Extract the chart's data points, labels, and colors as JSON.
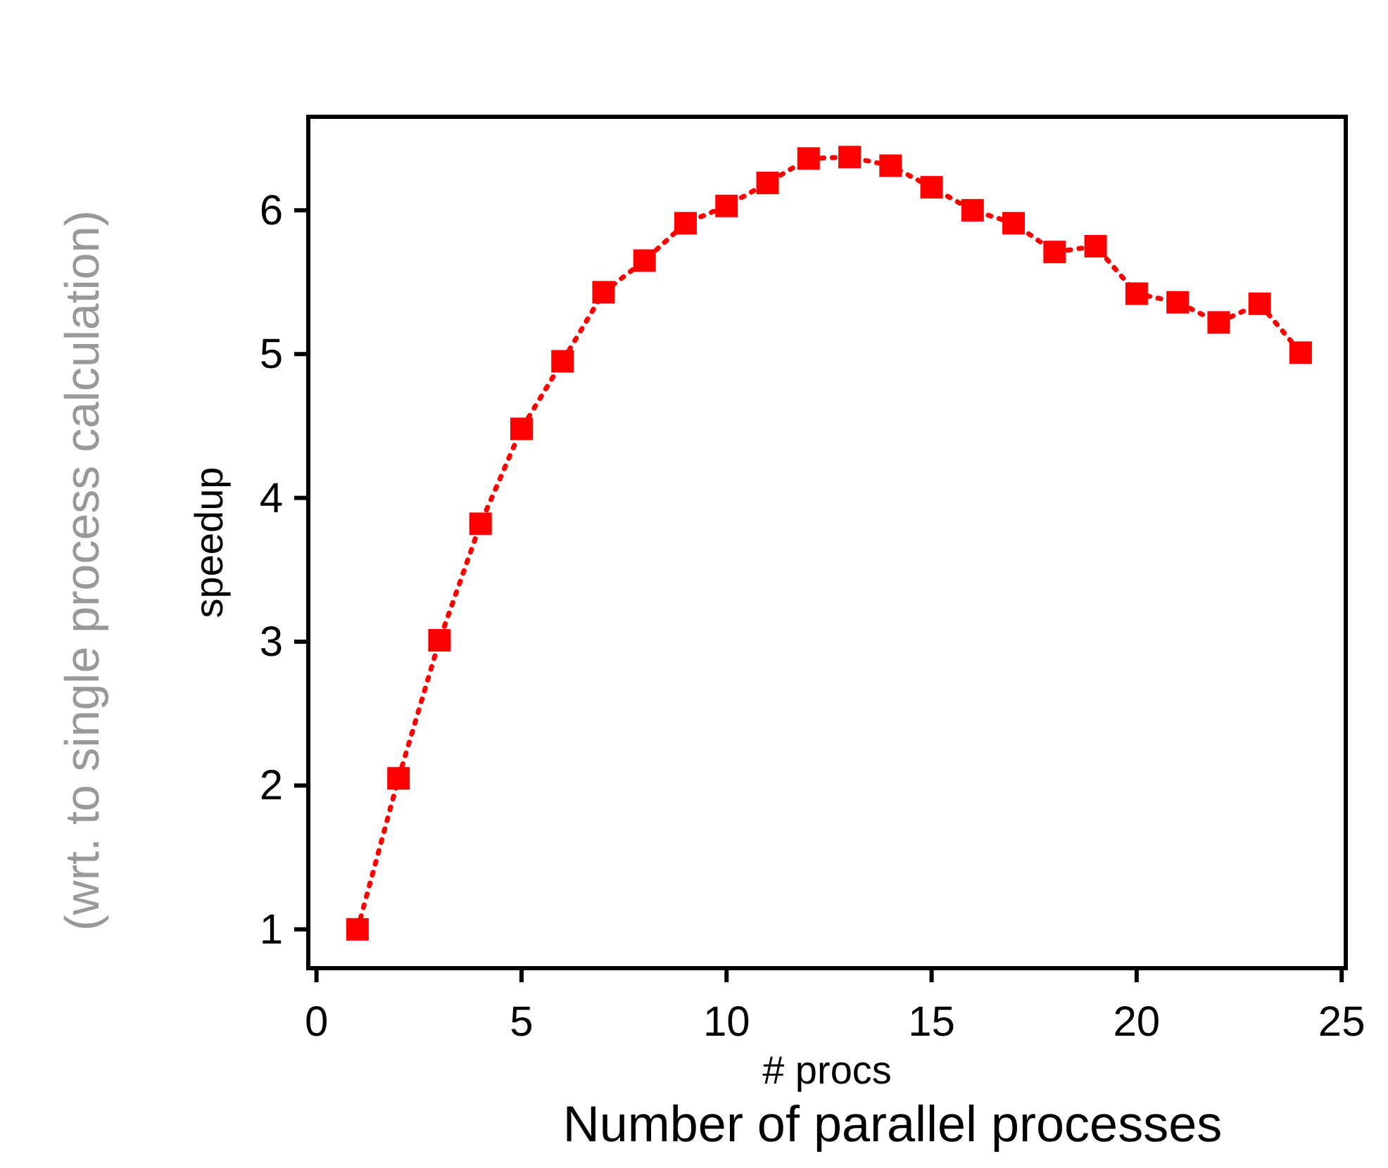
{
  "chart_data": {
    "type": "line",
    "xlabel": "# procs",
    "ylabel": "speedup",
    "annotations": [
      "(wrt. to single process calculation)",
      "Number of parallel processes"
    ],
    "x": [
      1,
      2,
      3,
      4,
      5,
      6,
      7,
      8,
      9,
      10,
      11,
      12,
      13,
      14,
      15,
      16,
      17,
      18,
      19,
      20,
      21,
      22,
      23,
      24
    ],
    "series": [
      {
        "color": "#ff0000",
        "values": [
          1.0,
          2.05,
          3.01,
          3.82,
          4.48,
          4.95,
          5.43,
          5.65,
          5.91,
          6.03,
          6.19,
          6.36,
          6.37,
          6.31,
          6.16,
          6.0,
          5.91,
          5.71,
          5.75,
          5.42,
          5.36,
          5.22,
          5.35,
          5.01
        ]
      }
    ],
    "xlim": [
      -0.2,
      25.1
    ],
    "ylim": [
      0.73,
      6.65
    ],
    "xticks": [
      0,
      5,
      10,
      15,
      20,
      25
    ],
    "yticks": [
      1,
      2,
      3,
      4,
      5,
      6
    ],
    "marker": "square",
    "line_style": "dotted",
    "grid": false
  }
}
